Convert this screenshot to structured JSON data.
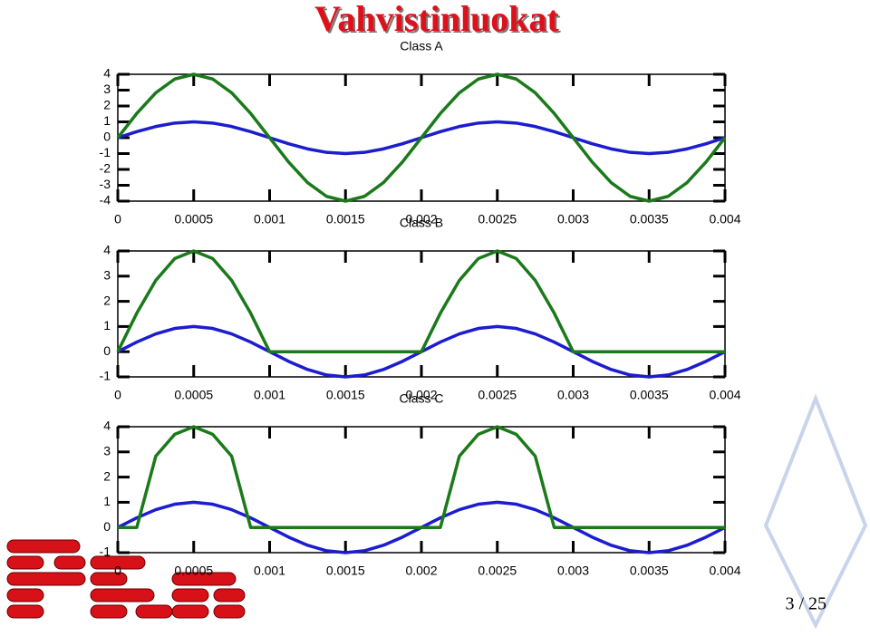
{
  "slide": {
    "title": "Vahvistinluokat",
    "page": "3 / 25"
  },
  "chart_data": [
    {
      "type": "line",
      "title": "Class A",
      "x": [
        0,
        0.000125,
        0.00025,
        0.000375,
        0.0005,
        0.000625,
        0.00075,
        0.000875,
        0.001,
        0.001125,
        0.00125,
        0.001375,
        0.0015,
        0.001625,
        0.00175,
        0.001875,
        0.002,
        0.002125,
        0.00225,
        0.002375,
        0.0025,
        0.002625,
        0.00275,
        0.002875,
        0.003,
        0.003125,
        0.00325,
        0.003375,
        0.0035,
        0.003625,
        0.00375,
        0.003875,
        0.004
      ],
      "series": [
        {
          "color": "#1c1cd0",
          "values": [
            0,
            0.383,
            0.707,
            0.924,
            1,
            0.924,
            0.707,
            0.383,
            0,
            -0.383,
            -0.707,
            -0.924,
            -1,
            -0.924,
            -0.707,
            -0.383,
            0,
            0.383,
            0.707,
            0.924,
            1,
            0.924,
            0.707,
            0.383,
            0,
            -0.383,
            -0.707,
            -0.924,
            -1,
            -0.924,
            -0.707,
            -0.383,
            0
          ]
        },
        {
          "color": "#1a7a1a",
          "values": [
            0,
            1.53,
            2.83,
            3.7,
            4,
            3.7,
            2.83,
            1.53,
            0,
            -1.53,
            -2.83,
            -3.7,
            -4,
            -3.7,
            -2.83,
            -1.53,
            0,
            1.53,
            2.83,
            3.7,
            4,
            3.7,
            2.83,
            1.53,
            0,
            -1.53,
            -2.83,
            -3.7,
            -4,
            -3.7,
            -2.83,
            -1.53,
            0
          ]
        }
      ],
      "xlim": [
        0,
        0.004
      ],
      "xticks": [
        0,
        0.0005,
        0.001,
        0.0015,
        0.002,
        0.0025,
        0.003,
        0.0035,
        0.004
      ],
      "ylim": [
        -4,
        4
      ],
      "yticks": [
        -4,
        -3,
        -2,
        -1,
        0,
        1,
        2,
        3,
        4
      ]
    },
    {
      "type": "line",
      "title": "Class B",
      "x": [
        0,
        0.000125,
        0.00025,
        0.000375,
        0.0005,
        0.000625,
        0.00075,
        0.000875,
        0.001,
        0.001125,
        0.00125,
        0.001375,
        0.0015,
        0.001625,
        0.00175,
        0.001875,
        0.002,
        0.002125,
        0.00225,
        0.002375,
        0.0025,
        0.002625,
        0.00275,
        0.002875,
        0.003,
        0.003125,
        0.00325,
        0.003375,
        0.0035,
        0.003625,
        0.00375,
        0.003875,
        0.004
      ],
      "series": [
        {
          "color": "#1c1cd0",
          "values": [
            0,
            0.383,
            0.707,
            0.924,
            1,
            0.924,
            0.707,
            0.383,
            0,
            -0.383,
            -0.707,
            -0.924,
            -1,
            -0.924,
            -0.707,
            -0.383,
            0,
            0.383,
            0.707,
            0.924,
            1,
            0.924,
            0.707,
            0.383,
            0,
            -0.383,
            -0.707,
            -0.924,
            -1,
            -0.924,
            -0.707,
            -0.383,
            0
          ]
        },
        {
          "color": "#1a7a1a",
          "values": [
            0,
            1.53,
            2.83,
            3.7,
            4,
            3.7,
            2.83,
            1.53,
            0,
            0,
            0,
            0,
            0,
            0,
            0,
            0,
            0,
            1.53,
            2.83,
            3.7,
            4,
            3.7,
            2.83,
            1.53,
            0,
            0,
            0,
            0,
            0,
            0,
            0,
            0,
            0
          ]
        }
      ],
      "xlim": [
        0,
        0.004
      ],
      "xticks": [
        0,
        0.0005,
        0.001,
        0.0015,
        0.002,
        0.0025,
        0.003,
        0.0035,
        0.004
      ],
      "ylim": [
        -1,
        4
      ],
      "yticks": [
        -1,
        0,
        1,
        2,
        3,
        4
      ]
    },
    {
      "type": "line",
      "title": "Class C",
      "x": [
        0,
        0.000125,
        0.00025,
        0.000375,
        0.0005,
        0.000625,
        0.00075,
        0.000875,
        0.001,
        0.001125,
        0.00125,
        0.001375,
        0.0015,
        0.001625,
        0.00175,
        0.001875,
        0.002,
        0.002125,
        0.00225,
        0.002375,
        0.0025,
        0.002625,
        0.00275,
        0.002875,
        0.003,
        0.003125,
        0.00325,
        0.003375,
        0.0035,
        0.003625,
        0.00375,
        0.003875,
        0.004
      ],
      "series": [
        {
          "color": "#1c1cd0",
          "values": [
            0,
            0.383,
            0.707,
            0.924,
            1,
            0.924,
            0.707,
            0.383,
            0,
            -0.383,
            -0.707,
            -0.924,
            -1,
            -0.924,
            -0.707,
            -0.383,
            0,
            0.383,
            0.707,
            0.924,
            1,
            0.924,
            0.707,
            0.383,
            0,
            -0.383,
            -0.707,
            -0.924,
            -1,
            -0.924,
            -0.707,
            -0.383,
            0
          ]
        },
        {
          "color": "#1a7a1a",
          "values": [
            0,
            0,
            2.83,
            3.7,
            4,
            3.7,
            2.83,
            0,
            0,
            0,
            0,
            0,
            0,
            0,
            0,
            0,
            0,
            0,
            2.83,
            3.7,
            4,
            3.7,
            2.83,
            0,
            0,
            0,
            0,
            0,
            0,
            0,
            0,
            0,
            0
          ]
        }
      ],
      "xlim": [
        0,
        0.004
      ],
      "xticks": [
        0,
        0.0005,
        0.001,
        0.0015,
        0.002,
        0.0025,
        0.003,
        0.0035,
        0.004
      ],
      "ylim": [
        -1,
        4
      ],
      "yticks": [
        -1,
        0,
        1,
        2,
        3,
        4
      ]
    }
  ]
}
